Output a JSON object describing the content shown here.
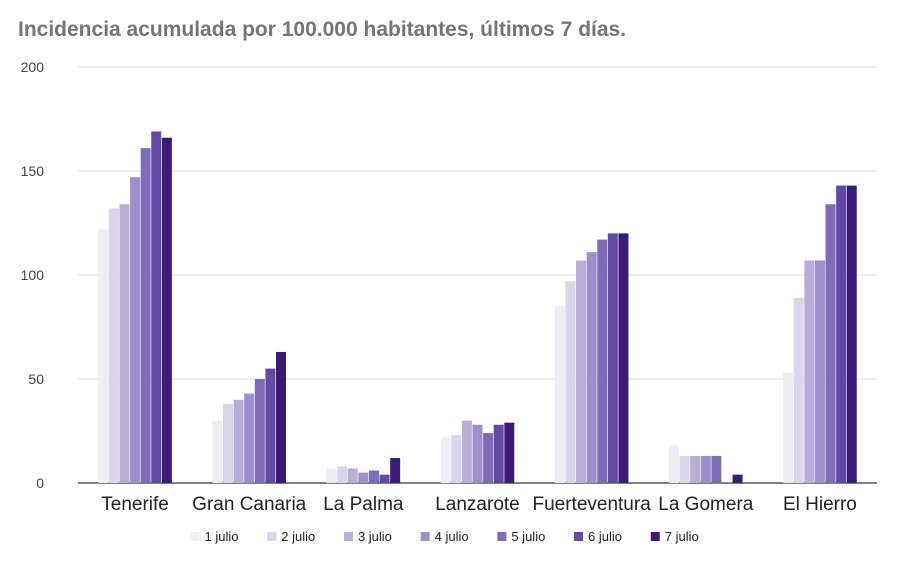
{
  "chart_data": {
    "type": "bar",
    "title": "Incidencia acumulada por 100.000 habitantes, últimos 7 días.",
    "xlabel": "",
    "ylabel": "",
    "ylim": [
      0,
      200
    ],
    "y_ticks": [
      0,
      50,
      100,
      150,
      200
    ],
    "grid": true,
    "legend_position": "bottom",
    "categories": [
      "Tenerife",
      "Gran Canaria",
      "La Palma",
      "Lanzarote",
      "Fuerteventura",
      "La Gomera",
      "El Hierro"
    ],
    "series": [
      {
        "name": "1 julio",
        "color": "#ededf3",
        "values": [
          122,
          30,
          7,
          22,
          85,
          18,
          53
        ]
      },
      {
        "name": "2 julio",
        "color": "#d9d6ea",
        "values": [
          132,
          38,
          8,
          23,
          97,
          13,
          89
        ]
      },
      {
        "name": "3 julio",
        "color": "#b8aed8",
        "values": [
          134,
          40,
          7,
          30,
          107,
          13,
          107
        ]
      },
      {
        "name": "4 julio",
        "color": "#9d8fc9",
        "values": [
          147,
          43,
          5,
          28,
          111,
          13,
          107
        ]
      },
      {
        "name": "5 julio",
        "color": "#7f6cb6",
        "values": [
          161,
          50,
          6,
          24,
          117,
          13,
          134
        ]
      },
      {
        "name": "6 julio",
        "color": "#6249a4",
        "values": [
          169,
          55,
          4,
          28,
          120,
          0,
          143
        ]
      },
      {
        "name": "7 julio",
        "color": "#3b1a78",
        "values": [
          166,
          63,
          12,
          29,
          120,
          4,
          143
        ]
      }
    ]
  }
}
